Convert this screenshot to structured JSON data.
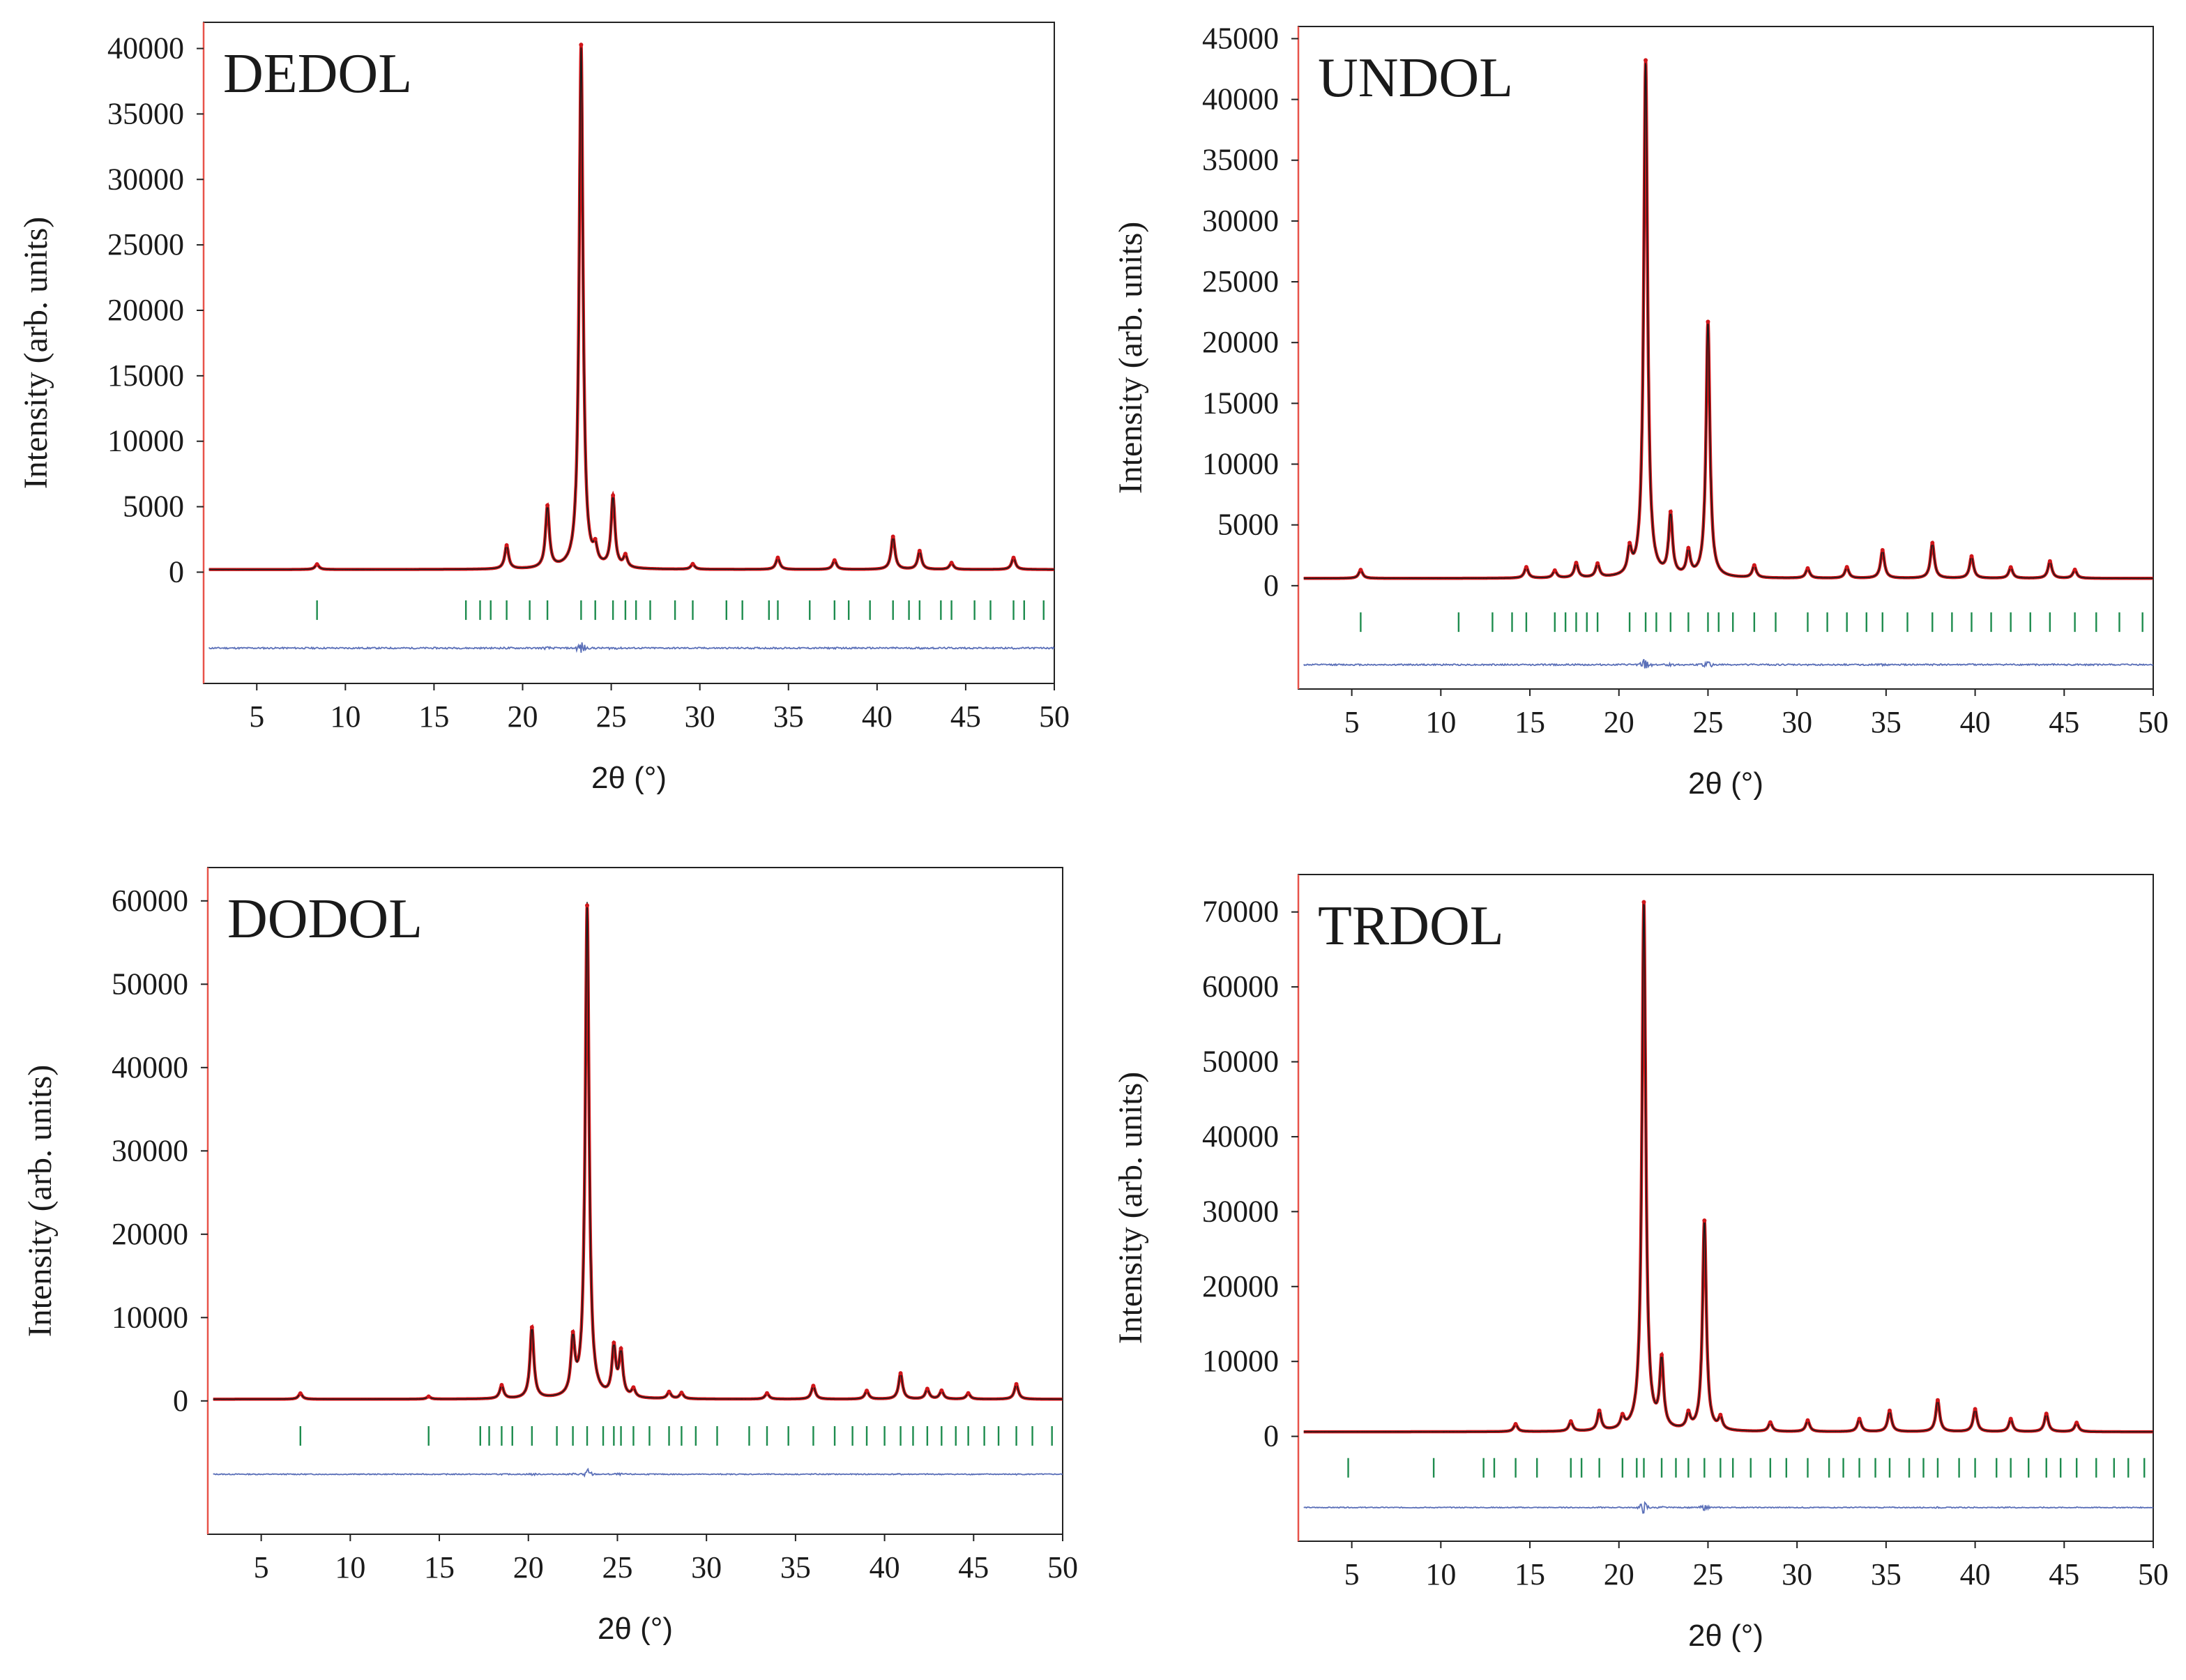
{
  "colors": {
    "observed": "#1a1a1a",
    "calculated": "#d0161a",
    "bragg_ticks": "#1e8c4e",
    "difference": "#5a6fb8",
    "axis": "#222222",
    "left_axis_accent": "#e8534a"
  },
  "chart_data": [
    {
      "type": "line",
      "title": "DEDOL",
      "xlabel": "2θ (°)",
      "ylabel": "Intensity (arb. units)",
      "xlim": [
        2,
        50
      ],
      "ylim": [
        -8500,
        42000
      ],
      "xticks": [
        "5",
        "10",
        "15",
        "20",
        "25",
        "30",
        "35",
        "40",
        "45",
        "50"
      ],
      "yticks": [
        "0",
        "5000",
        "10000",
        "15000",
        "20000",
        "25000",
        "30000",
        "35000",
        "40000"
      ],
      "background": 200,
      "peaks": [
        {
          "x": 8.4,
          "y": 400
        },
        {
          "x": 19.1,
          "y": 1800
        },
        {
          "x": 21.4,
          "y": 4700
        },
        {
          "x": 23.3,
          "y": 40000
        },
        {
          "x": 24.1,
          "y": 1200
        },
        {
          "x": 25.1,
          "y": 5400
        },
        {
          "x": 25.8,
          "y": 900
        },
        {
          "x": 29.6,
          "y": 400
        },
        {
          "x": 34.4,
          "y": 900
        },
        {
          "x": 37.6,
          "y": 700
        },
        {
          "x": 40.9,
          "y": 2500
        },
        {
          "x": 42.4,
          "y": 1400
        },
        {
          "x": 44.2,
          "y": 500
        },
        {
          "x": 47.7,
          "y": 900
        }
      ],
      "reflections": [
        8.4,
        16.8,
        17.6,
        18.2,
        19.1,
        20.4,
        21.4,
        23.3,
        24.1,
        25.1,
        25.8,
        26.4,
        27.2,
        28.6,
        29.6,
        31.5,
        32.4,
        33.9,
        34.4,
        36.2,
        37.6,
        38.4,
        39.6,
        40.9,
        41.8,
        42.4,
        43.6,
        44.2,
        45.5,
        46.4,
        47.7,
        48.3,
        49.4
      ],
      "reflection_band_y": -2900,
      "difference_baseline_y": -5800
    },
    {
      "type": "line",
      "title": "UNDOL",
      "xlabel": "2θ (°)",
      "ylabel": "Intensity (arb. units)",
      "xlim": [
        2,
        50
      ],
      "ylim": [
        -8500,
        46000
      ],
      "xticks": [
        "5",
        "10",
        "15",
        "20",
        "25",
        "30",
        "35",
        "40",
        "45",
        "50"
      ],
      "yticks": [
        "0",
        "5000",
        "10000",
        "15000",
        "20000",
        "25000",
        "30000",
        "35000",
        "40000",
        "45000"
      ],
      "background": 600,
      "peaks": [
        {
          "x": 5.5,
          "y": 700
        },
        {
          "x": 14.8,
          "y": 900
        },
        {
          "x": 16.4,
          "y": 600
        },
        {
          "x": 17.6,
          "y": 1200
        },
        {
          "x": 18.8,
          "y": 1100
        },
        {
          "x": 20.6,
          "y": 2000
        },
        {
          "x": 21.5,
          "y": 42500
        },
        {
          "x": 22.9,
          "y": 5000
        },
        {
          "x": 23.9,
          "y": 2000
        },
        {
          "x": 25.0,
          "y": 21000
        },
        {
          "x": 27.6,
          "y": 1000
        },
        {
          "x": 30.6,
          "y": 800
        },
        {
          "x": 32.8,
          "y": 900
        },
        {
          "x": 34.8,
          "y": 2300
        },
        {
          "x": 37.6,
          "y": 2900
        },
        {
          "x": 39.8,
          "y": 1800
        },
        {
          "x": 42.0,
          "y": 900
        },
        {
          "x": 44.2,
          "y": 1400
        },
        {
          "x": 45.6,
          "y": 700
        }
      ],
      "reflections": [
        5.5,
        11.0,
        12.9,
        14.0,
        14.8,
        16.4,
        17.0,
        17.6,
        18.2,
        18.8,
        20.6,
        21.5,
        22.1,
        22.9,
        23.9,
        25.0,
        25.6,
        26.4,
        27.6,
        28.8,
        30.6,
        31.7,
        32.8,
        33.9,
        34.8,
        36.2,
        37.6,
        38.7,
        39.8,
        40.9,
        42.0,
        43.1,
        44.2,
        45.6,
        46.8,
        48.1,
        49.4
      ],
      "reflection_band_y": -3000,
      "difference_baseline_y": -6500
    },
    {
      "type": "line",
      "title": "DODOL",
      "xlabel": "2θ (°)",
      "ylabel": "Intensity (arb. units)",
      "xlim": [
        2,
        50
      ],
      "ylim": [
        -16000,
        64000
      ],
      "xticks": [
        "5",
        "10",
        "15",
        "20",
        "25",
        "30",
        "35",
        "40",
        "45",
        "50"
      ],
      "yticks": [
        "0",
        "10000",
        "20000",
        "30000",
        "40000",
        "50000",
        "60000"
      ],
      "background": 200,
      "peaks": [
        {
          "x": 7.2,
          "y": 700
        },
        {
          "x": 14.4,
          "y": 300
        },
        {
          "x": 18.5,
          "y": 1600
        },
        {
          "x": 20.2,
          "y": 8500
        },
        {
          "x": 22.5,
          "y": 6500
        },
        {
          "x": 23.3,
          "y": 59000
        },
        {
          "x": 24.8,
          "y": 5800
        },
        {
          "x": 25.2,
          "y": 5200
        },
        {
          "x": 25.9,
          "y": 1000
        },
        {
          "x": 27.9,
          "y": 800
        },
        {
          "x": 28.6,
          "y": 700
        },
        {
          "x": 33.4,
          "y": 700
        },
        {
          "x": 36.0,
          "y": 1600
        },
        {
          "x": 39.0,
          "y": 1000
        },
        {
          "x": 40.9,
          "y": 3100
        },
        {
          "x": 42.4,
          "y": 1200
        },
        {
          "x": 43.2,
          "y": 1000
        },
        {
          "x": 44.7,
          "y": 700
        },
        {
          "x": 47.4,
          "y": 1800
        }
      ],
      "reflections": [
        7.2,
        14.4,
        17.3,
        17.8,
        18.5,
        19.1,
        20.2,
        21.6,
        22.5,
        23.3,
        24.2,
        24.8,
        25.2,
        25.9,
        26.8,
        27.9,
        28.6,
        29.4,
        30.6,
        32.4,
        33.4,
        34.6,
        36.0,
        37.2,
        38.2,
        39.0,
        40.0,
        40.9,
        41.6,
        42.4,
        43.2,
        44.0,
        44.7,
        45.6,
        46.4,
        47.4,
        48.3,
        49.4
      ],
      "reflection_band_y": -4200,
      "difference_baseline_y": -8800
    },
    {
      "type": "line",
      "title": "TRDOL",
      "xlabel": "2θ (°)",
      "ylabel": "Intensity (arb. units)",
      "xlim": [
        2,
        50
      ],
      "ylim": [
        -14000,
        75000
      ],
      "xticks": [
        "5",
        "10",
        "15",
        "20",
        "25",
        "30",
        "35",
        "40",
        "45",
        "50"
      ],
      "yticks": [
        "0",
        "10000",
        "20000",
        "30000",
        "40000",
        "50000",
        "60000",
        "70000"
      ],
      "background": 600,
      "peaks": [
        {
          "x": 14.2,
          "y": 1000
        },
        {
          "x": 17.3,
          "y": 1300
        },
        {
          "x": 18.9,
          "y": 2600
        },
        {
          "x": 20.2,
          "y": 1500
        },
        {
          "x": 21.4,
          "y": 70500
        },
        {
          "x": 22.4,
          "y": 9000
        },
        {
          "x": 23.9,
          "y": 2000
        },
        {
          "x": 24.8,
          "y": 28000
        },
        {
          "x": 25.7,
          "y": 1600
        },
        {
          "x": 28.5,
          "y": 1200
        },
        {
          "x": 30.6,
          "y": 1500
        },
        {
          "x": 33.5,
          "y": 1700
        },
        {
          "x": 35.2,
          "y": 2800
        },
        {
          "x": 37.9,
          "y": 4200
        },
        {
          "x": 40.0,
          "y": 3000
        },
        {
          "x": 42.0,
          "y": 1700
        },
        {
          "x": 44.0,
          "y": 2400
        },
        {
          "x": 45.7,
          "y": 1200
        }
      ],
      "reflections": [
        4.8,
        9.6,
        12.4,
        13.0,
        14.2,
        15.4,
        17.3,
        17.9,
        18.9,
        20.2,
        21.0,
        21.4,
        22.4,
        23.2,
        23.9,
        24.8,
        25.7,
        26.4,
        27.4,
        28.5,
        29.4,
        30.6,
        31.8,
        32.6,
        33.5,
        34.4,
        35.2,
        36.3,
        37.1,
        37.9,
        39.1,
        40.0,
        41.2,
        42.0,
        43.0,
        44.0,
        44.8,
        45.7,
        46.8,
        47.8,
        48.6,
        49.5
      ],
      "reflection_band_y": -4200,
      "difference_baseline_y": -9500
    }
  ]
}
